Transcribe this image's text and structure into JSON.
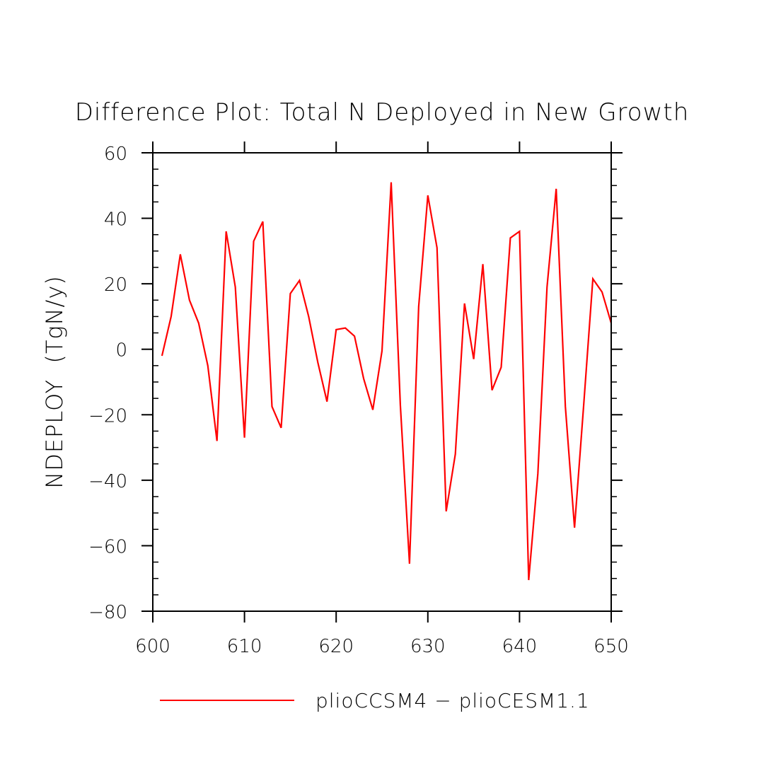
{
  "chart_data": {
    "type": "line",
    "title": "Difference Plot: Total N Deployed in New Growth",
    "xlabel": "",
    "ylabel": "NDEPLOY  (TgN/y)",
    "xlim": [
      600,
      650
    ],
    "ylim": [
      -80,
      60
    ],
    "xticks": [
      600,
      610,
      620,
      630,
      640,
      650
    ],
    "yticks": [
      -80,
      -60,
      -40,
      -20,
      0,
      20,
      40,
      60
    ],
    "xtick_labels": [
      "600",
      "610",
      "620",
      "630",
      "640",
      "650"
    ],
    "ytick_labels": [
      "−80",
      "−60",
      "−40",
      "−20",
      "0",
      "20",
      "40",
      "60"
    ],
    "grid": false,
    "legend_position": "bottom",
    "series": [
      {
        "name": "plioCCSM4 − plioCESM1.1",
        "color": "#ff0000",
        "x": [
          601,
          602,
          603,
          604,
          605,
          606,
          607,
          608,
          609,
          610,
          611,
          612,
          613,
          614,
          615,
          616,
          617,
          618,
          619,
          620,
          621,
          622,
          623,
          624,
          625,
          626,
          627,
          628,
          629,
          630,
          631,
          632,
          633,
          634,
          635,
          636,
          637,
          638,
          639,
          640,
          641,
          642,
          643,
          644,
          645,
          646,
          647,
          648,
          649,
          650
        ],
        "values": [
          -2,
          10,
          29,
          15,
          8,
          -5,
          -28,
          36,
          19,
          -27,
          33,
          39,
          -17.5,
          -24,
          17,
          21,
          10,
          -4,
          -16,
          6,
          6.5,
          4,
          -9,
          -18.5,
          -0.5,
          51,
          -17,
          -65.5,
          13,
          47,
          31,
          -49.5,
          -32,
          14,
          -3,
          26,
          -12.5,
          -5.5,
          34,
          36,
          -70.5,
          -38,
          19,
          49,
          -17.5,
          -54.5,
          -17,
          21.5,
          17.5,
          8
        ]
      }
    ]
  }
}
